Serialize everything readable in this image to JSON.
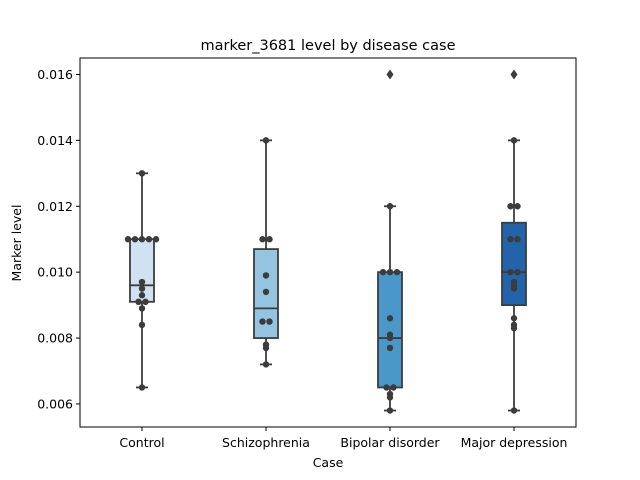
{
  "chart_data": {
    "type": "box",
    "title": "marker_3681 level by disease case",
    "xlabel": "Case",
    "ylabel": "Marker level",
    "categories": [
      "Control",
      "Schizophrenia",
      "Bipolar disorder",
      "Major depression"
    ],
    "ylim": [
      0.0053,
      0.0165
    ],
    "yticks": [
      0.006,
      0.008,
      0.01,
      0.012,
      0.014,
      0.016
    ],
    "ytick_labels": [
      "0.006",
      "0.008",
      "0.010",
      "0.012",
      "0.014",
      "0.016"
    ],
    "grid": false,
    "colors": [
      "#d0e1f2",
      "#94c4df",
      "#4a98c9",
      "#2164ab"
    ],
    "boxes": [
      {
        "q1": 0.0091,
        "median": 0.0096,
        "q3": 0.011,
        "whisker_low": 0.0065,
        "whisker_high": 0.013,
        "outliers": []
      },
      {
        "q1": 0.008,
        "median": 0.0089,
        "q3": 0.0107,
        "whisker_low": 0.0072,
        "whisker_high": 0.014,
        "outliers": []
      },
      {
        "q1": 0.0065,
        "median": 0.008,
        "q3": 0.01,
        "whisker_low": 0.0058,
        "whisker_high": 0.012,
        "outliers": [
          0.016
        ]
      },
      {
        "q1": 0.009,
        "median": 0.01,
        "q3": 0.0115,
        "whisker_low": 0.0058,
        "whisker_high": 0.014,
        "outliers": [
          0.016
        ]
      }
    ],
    "points": [
      [
        0.013,
        0.011,
        0.011,
        0.011,
        0.011,
        0.011,
        0.0097,
        0.0095,
        0.0093,
        0.0091,
        0.0091,
        0.0089,
        0.0084,
        0.0065
      ],
      [
        0.014,
        0.011,
        0.011,
        0.0099,
        0.0094,
        0.0085,
        0.0085,
        0.0078,
        0.0077,
        0.0072
      ],
      [
        0.012,
        0.01,
        0.01,
        0.01,
        0.0086,
        0.0081,
        0.008,
        0.0077,
        0.0065,
        0.0065,
        0.0063,
        0.0062,
        0.0058
      ],
      [
        0.014,
        0.012,
        0.012,
        0.011,
        0.011,
        0.01,
        0.01,
        0.0097,
        0.0096,
        0.0095,
        0.0086,
        0.0084,
        0.0083,
        0.0058
      ]
    ]
  }
}
